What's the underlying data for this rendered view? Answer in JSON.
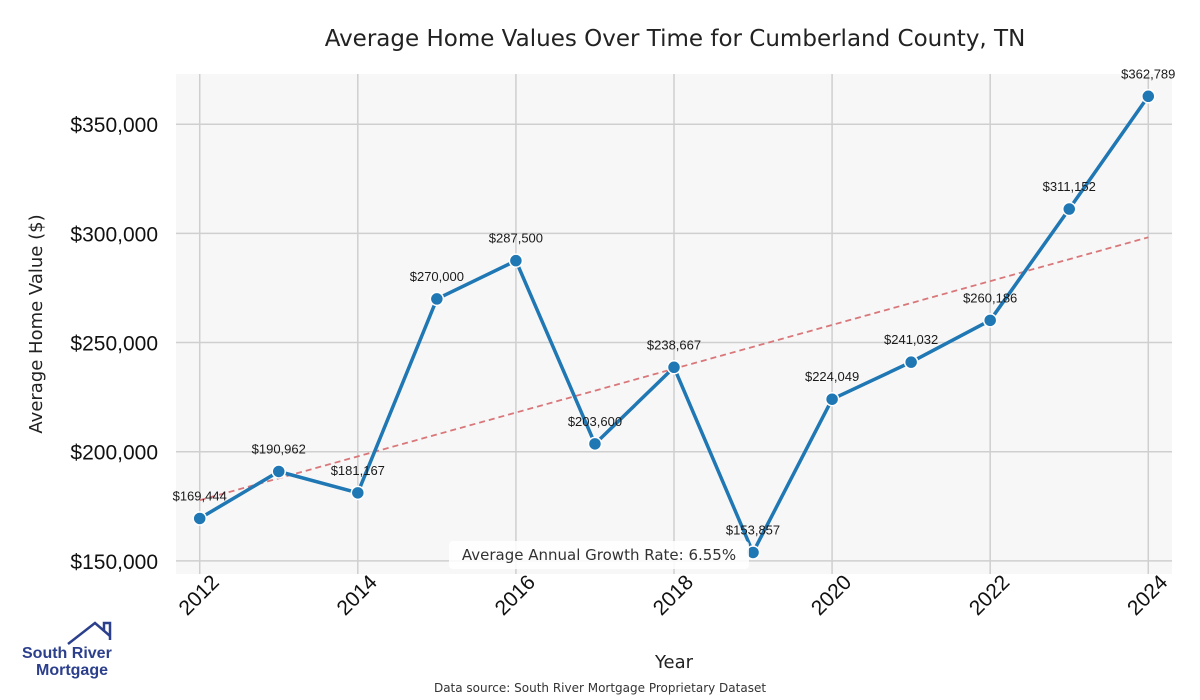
{
  "chart_data": {
    "type": "line",
    "title": "Average Home Values Over Time for Cumberland County, TN",
    "xlabel": "Year",
    "ylabel": "Average Home Value ($)",
    "x": [
      2012,
      2013,
      2014,
      2015,
      2016,
      2017,
      2018,
      2019,
      2020,
      2021,
      2022,
      2023,
      2024
    ],
    "values": [
      169444,
      190962,
      181167,
      270000,
      287500,
      203600,
      238667,
      153857,
      224049,
      241032,
      260186,
      311152,
      362789
    ],
    "data_labels": [
      "$169,444",
      "$190,962",
      "$181,167",
      "$270,000",
      "$287,500",
      "$203,600",
      "$238,667",
      "$153,857",
      "$224,049",
      "$241,032",
      "$260,186",
      "$311,152",
      "$362,789"
    ],
    "xticks": [
      2012,
      2014,
      2016,
      2018,
      2020,
      2022,
      2024
    ],
    "xtick_labels": [
      "2012",
      "2014",
      "2016",
      "2018",
      "2020",
      "2022",
      "2024"
    ],
    "yticks": [
      150000,
      200000,
      250000,
      300000,
      350000
    ],
    "ytick_labels": [
      "$150,000",
      "$200,000",
      "$250,000",
      "$300,000",
      "$350,000"
    ],
    "xlim": [
      2011.7,
      2024.3
    ],
    "ylim": [
      144000,
      373000
    ],
    "grid": true,
    "trend_line": {
      "x": [
        2012,
        2024
      ],
      "y": [
        177800,
        298200
      ],
      "style": "dashed"
    },
    "annotation": "Average Annual Growth Rate: 6.55%",
    "source": "Data source: South River Mortgage Proprietary Dataset",
    "colors": {
      "line": "#1f77b4",
      "trend": "#d9777a",
      "plot_bg": "#f7f7f7",
      "grid": "#cfcfcf"
    }
  },
  "logo": {
    "line1": "South River",
    "line2": "Mortgage",
    "color": "#2b3f8c"
  }
}
